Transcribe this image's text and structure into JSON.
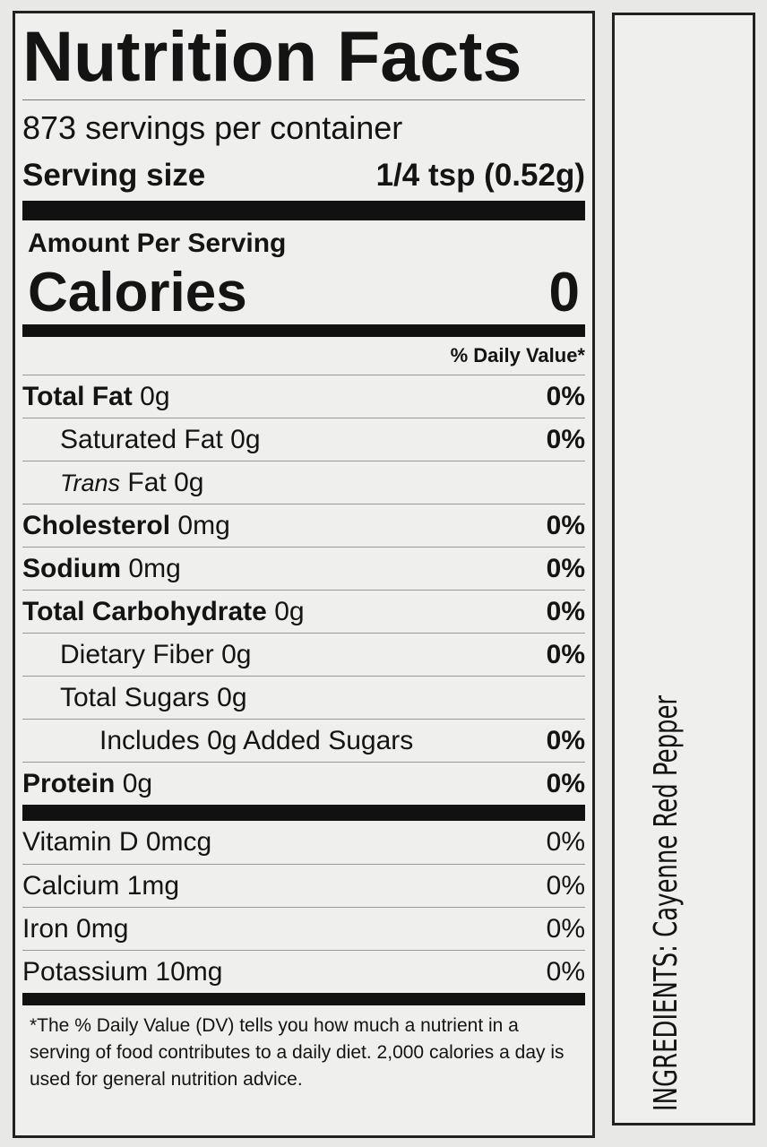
{
  "label": {
    "title": "Nutrition Facts",
    "servings": "873 servings per container",
    "serving_size": {
      "label": "Serving size",
      "value": "1/4 tsp (0.52g)"
    },
    "amount_per_serving": "Amount Per Serving",
    "calories": {
      "label": "Calories",
      "value": "0"
    },
    "daily_value_header": "% Daily Value*",
    "nutrients": [
      {
        "name": "Total Fat",
        "amount": "0g",
        "dv": "0%"
      },
      {
        "name": "Saturated Fat",
        "amount": "0g",
        "dv": "0%"
      },
      {
        "name": "Trans",
        "amount": "Fat 0g"
      },
      {
        "name": "Cholesterol",
        "amount": "0mg",
        "dv": "0%"
      },
      {
        "name": "Sodium",
        "amount": "0mg",
        "dv": "0%"
      },
      {
        "name": "Total Carbohydrate",
        "amount": "0g",
        "dv": "0%"
      },
      {
        "name": "Dietary Fiber",
        "amount": "0g",
        "dv": "0%"
      },
      {
        "name": "Total Sugars",
        "amount": "0g"
      },
      {
        "name": "Includes 0g Added Sugars",
        "dv": "0%"
      },
      {
        "name": "Protein",
        "amount": "0g",
        "dv": "0%"
      }
    ],
    "vitamins": [
      {
        "name": "Vitamin D 0mcg",
        "dv": "0%"
      },
      {
        "name": "Calcium 1mg",
        "dv": "0%"
      },
      {
        "name": "Iron 0mg",
        "dv": "0%"
      },
      {
        "name": "Potassium 10mg",
        "dv": "0%"
      }
    ],
    "footnote": "*The % Daily Value (DV) tells you how much a nutrient in a serving of food contributes to a daily diet. 2,000 calories a day is used for general nutrition advice."
  },
  "ingredients": "INGREDIENTS: Cayenne Red Pepper"
}
